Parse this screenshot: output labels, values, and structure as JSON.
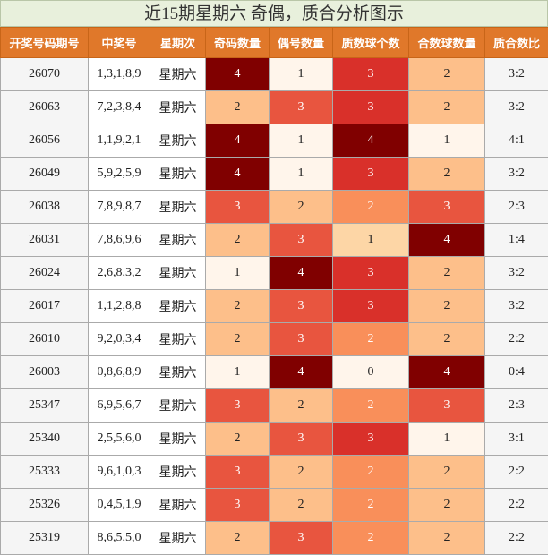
{
  "title": "近15期星期六 奇偶，质合分析图示",
  "table": {
    "headers": [
      "开奖号码期号",
      "中奖号",
      "星期次",
      "奇码数量",
      "偶号数量",
      "质数球个数",
      "合数球数量",
      "质合数比"
    ],
    "rows": [
      [
        "26070",
        "1,3,1,8,9",
        "星期六",
        4,
        1,
        3,
        2,
        "3:2"
      ],
      [
        "26063",
        "7,2,3,8,4",
        "星期六",
        2,
        3,
        3,
        2,
        "3:2"
      ],
      [
        "26056",
        "1,1,9,2,1",
        "星期六",
        4,
        1,
        4,
        1,
        "4:1"
      ],
      [
        "26049",
        "5,9,2,5,9",
        "星期六",
        4,
        1,
        3,
        2,
        "3:2"
      ],
      [
        "26038",
        "7,8,9,8,7",
        "星期六",
        3,
        2,
        2,
        3,
        "2:3"
      ],
      [
        "26031",
        "7,8,6,9,6",
        "星期六",
        2,
        3,
        1,
        4,
        "1:4"
      ],
      [
        "26024",
        "2,6,8,3,2",
        "星期六",
        1,
        4,
        3,
        2,
        "3:2"
      ],
      [
        "26017",
        "1,1,2,8,8",
        "星期六",
        2,
        3,
        3,
        2,
        "3:2"
      ],
      [
        "26010",
        "9,2,0,3,4",
        "星期六",
        2,
        3,
        2,
        2,
        "2:2"
      ],
      [
        "26003",
        "0,8,6,8,9",
        "星期六",
        1,
        4,
        0,
        4,
        "0:4"
      ],
      [
        "25347",
        "6,9,5,6,7",
        "星期六",
        3,
        2,
        2,
        3,
        "2:3"
      ],
      [
        "25340",
        "2,5,5,6,0",
        "星期六",
        2,
        3,
        3,
        1,
        "3:1"
      ],
      [
        "25333",
        "9,6,1,0,3",
        "星期六",
        3,
        2,
        2,
        2,
        "2:2"
      ],
      [
        "25326",
        "0,4,5,1,9",
        "星期六",
        3,
        2,
        2,
        2,
        "2:2"
      ],
      [
        "25319",
        "8,6,5,5,0",
        "星期六",
        2,
        3,
        2,
        2,
        "2:2"
      ]
    ]
  }
}
